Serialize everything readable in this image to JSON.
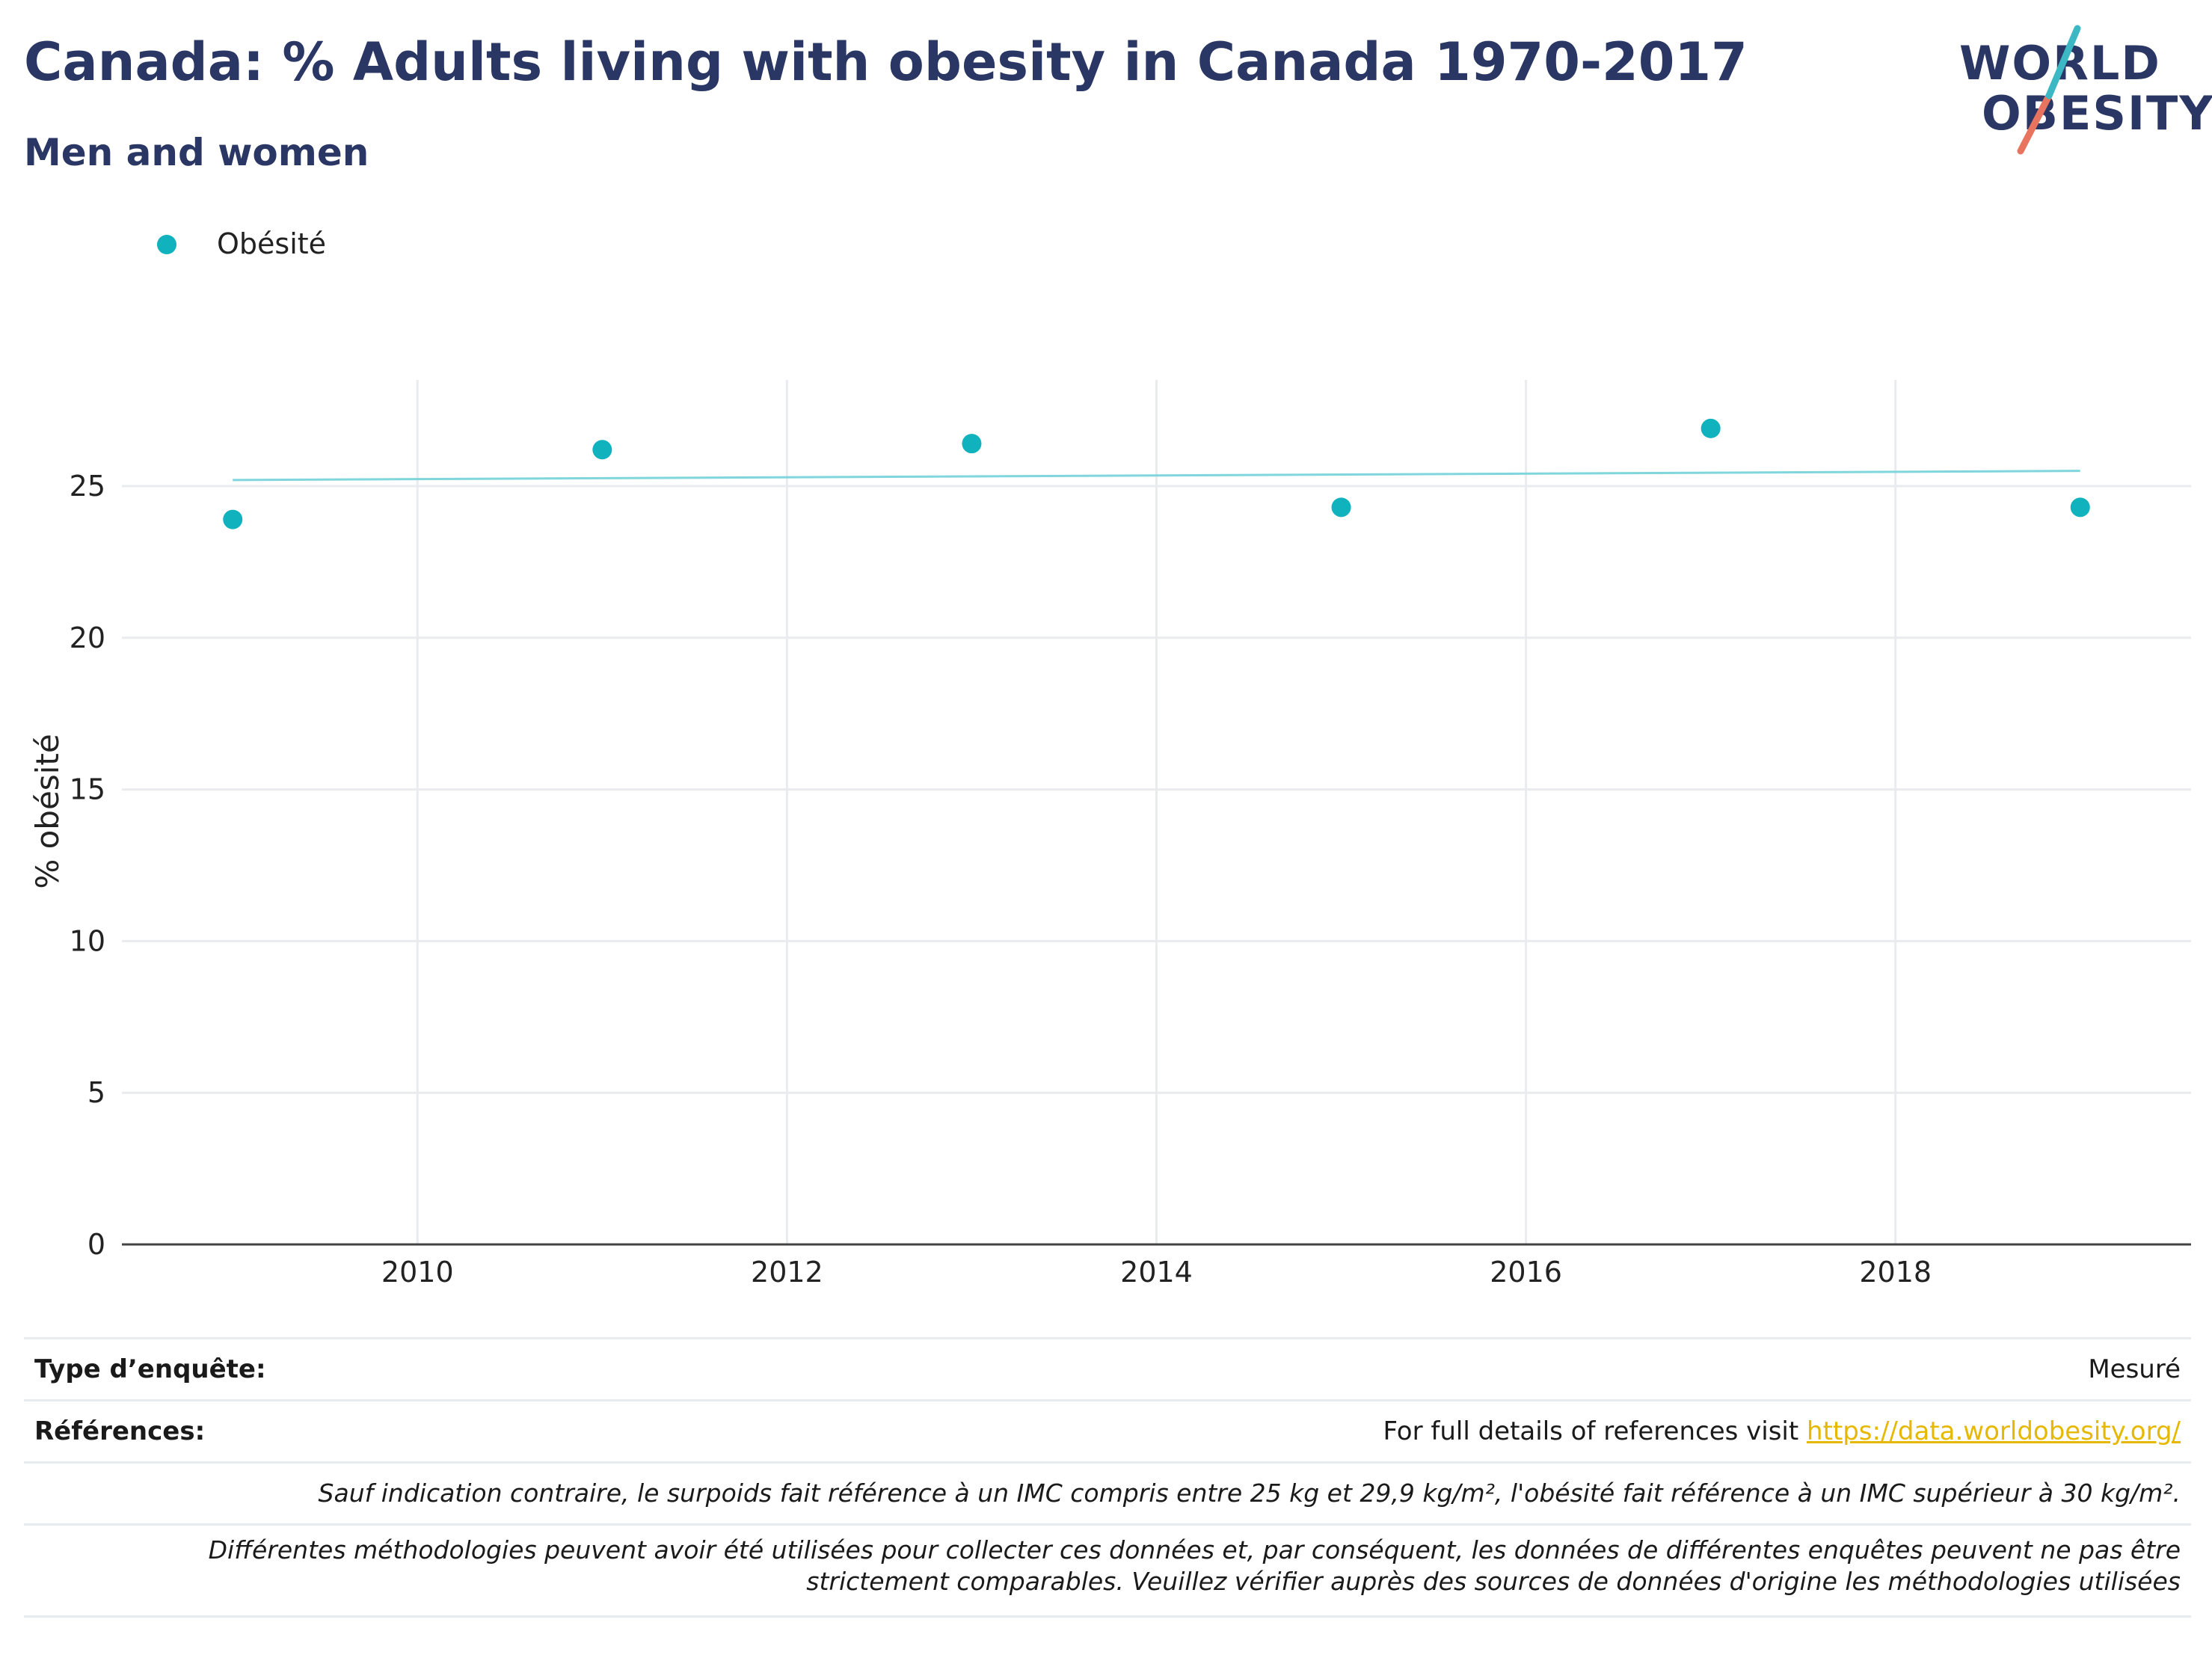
{
  "header": {
    "title": "Canada: % Adults living with obesity in Canada 1970-2017",
    "subtitle": "Men and women"
  },
  "logo": {
    "line1": "WORLD",
    "line2": "OBESITY",
    "colors": {
      "text": "#2a3664",
      "slash_top": "#3bb8c4",
      "slash_bottom": "#e8735f"
    }
  },
  "legend": {
    "label": "Obésité",
    "color": "#0fb2bd"
  },
  "chart_data": {
    "type": "scatter",
    "xlabel": "",
    "ylabel": "% obésité",
    "xlim": [
      2008.4,
      2019.6
    ],
    "ylim": [
      0,
      28.5
    ],
    "x_ticks": [
      2010,
      2012,
      2014,
      2016,
      2018
    ],
    "y_ticks": [
      0,
      5,
      10,
      15,
      20,
      25
    ],
    "grid": true,
    "legend_position": "top-left",
    "series": [
      {
        "name": "Obésité",
        "color": "#0fb2bd",
        "x": [
          2009,
          2011,
          2013,
          2015,
          2017,
          2019
        ],
        "y": [
          23.9,
          26.2,
          26.4,
          24.3,
          26.9,
          24.3
        ]
      }
    ],
    "trendline": {
      "color": "#7fd6dc",
      "x": [
        2009,
        2019
      ],
      "y": [
        25.2,
        25.5
      ]
    }
  },
  "footer": {
    "survey_type_label": "Type d’enquête:",
    "survey_type_value": "Mesuré",
    "references_label": "Références:",
    "references_text": "For full details of references visit",
    "references_link": "https://data.worldobesity.org/",
    "note1": "Sauf indication contraire, le surpoids fait référence à un IMC compris entre 25 kg et 29,9 kg/m², l'obésité fait référence à un IMC supérieur à 30 kg/m².",
    "note2": "Différentes méthodologies peuvent avoir été utilisées pour collecter ces données et, par conséquent, les données de différentes enquêtes peuvent ne pas être strictement comparables. Veuillez vérifier auprès des sources de données d'origine les méthodologies utilisées"
  }
}
